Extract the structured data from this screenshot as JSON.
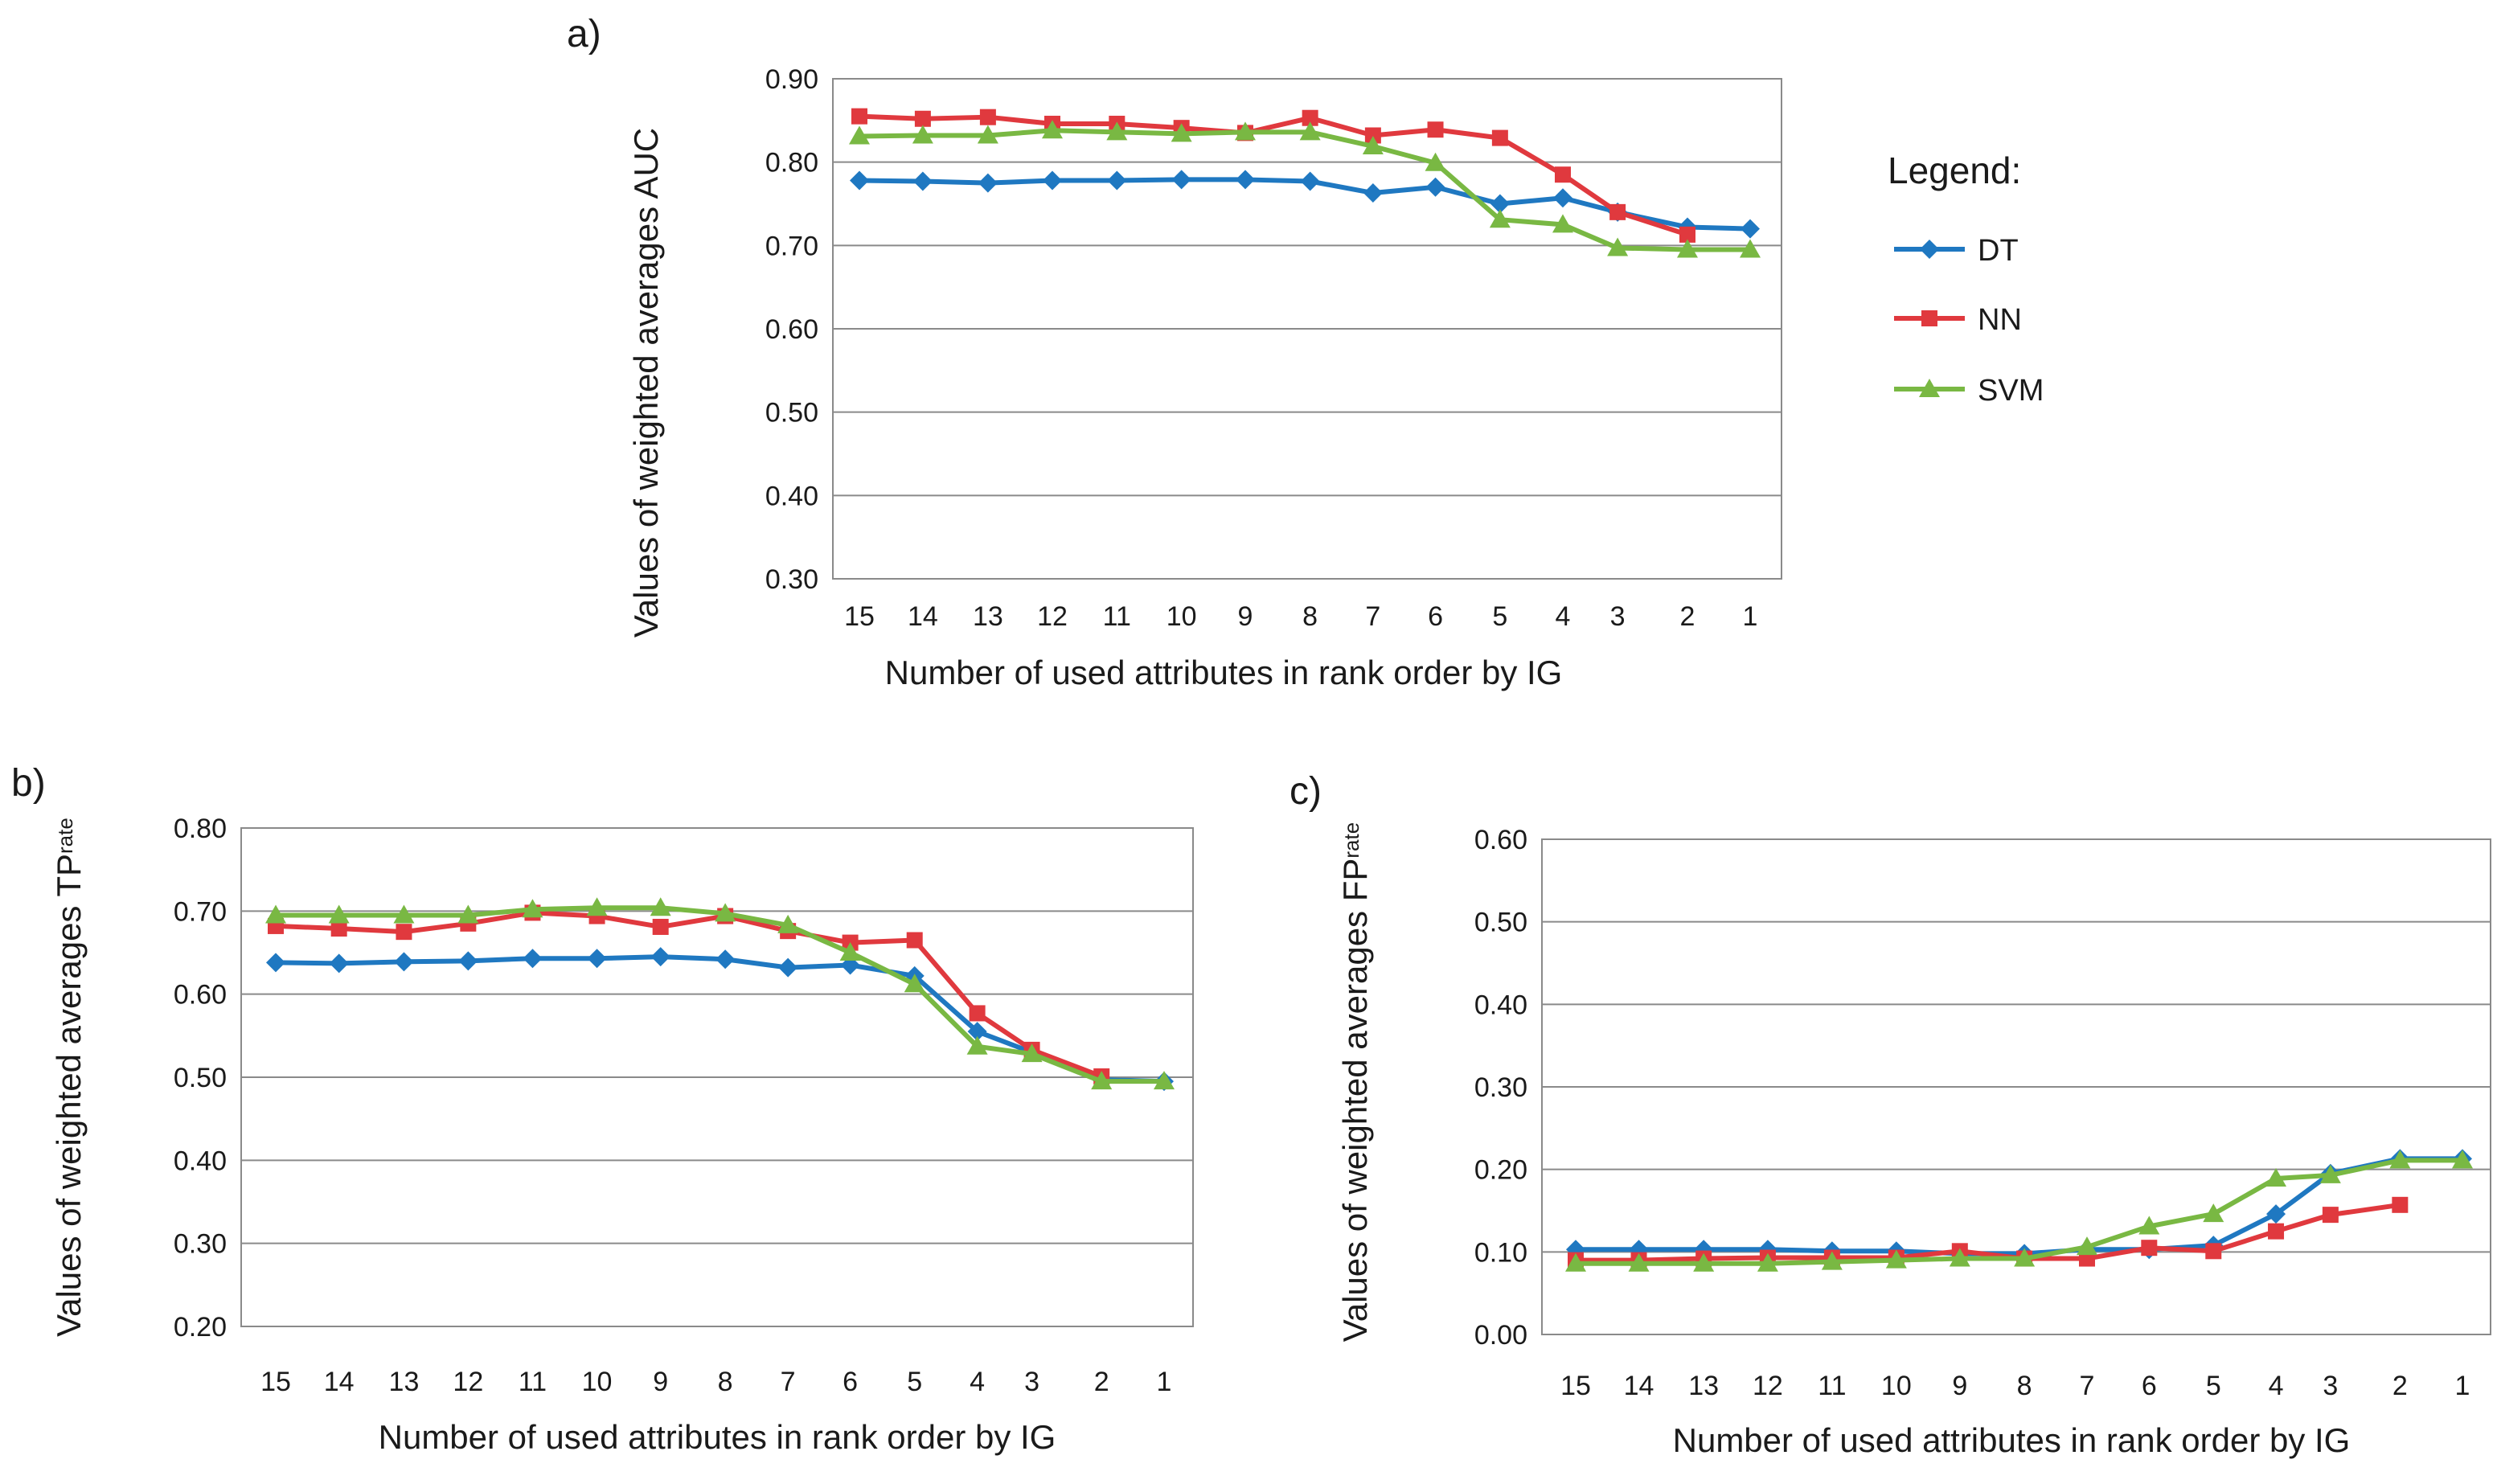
{
  "legend": {
    "title": "Legend:",
    "entries": [
      {
        "name": "DT",
        "color": "#1f78c1",
        "marker": "diamond"
      },
      {
        "name": "NN",
        "color": "#e0393e",
        "marker": "square"
      },
      {
        "name": "SVM",
        "color": "#79b843",
        "marker": "triangle"
      }
    ]
  },
  "chart_data": [
    {
      "id": "a",
      "panel_label": "a)",
      "type": "line",
      "x": [
        "15",
        "14",
        "13",
        "12",
        "11",
        "10",
        "9",
        "8",
        "7",
        "6",
        "5",
        "4",
        "3",
        "2",
        "1"
      ],
      "xlabel": "Number of used attributes in rank order by IG",
      "ylabel": "Values of weighted averages AUC",
      "ylabel_sub": "",
      "ylim": [
        0.3,
        0.9
      ],
      "yticks": [
        "0.30",
        "0.40",
        "0.50",
        "0.60",
        "0.70",
        "0.80",
        "0.90"
      ],
      "grid": true,
      "series": [
        {
          "name": "DT",
          "values": [
            0.778,
            0.777,
            0.775,
            0.778,
            0.778,
            0.779,
            0.779,
            0.777,
            0.763,
            0.77,
            0.75,
            0.757,
            0.74,
            0.722,
            0.72
          ]
        },
        {
          "name": "NN",
          "values": [
            0.855,
            0.852,
            0.854,
            0.846,
            0.846,
            0.841,
            0.835,
            0.853,
            0.832,
            0.839,
            0.829,
            0.785,
            0.74,
            0.713,
            null
          ]
        },
        {
          "name": "SVM",
          "values": [
            0.831,
            0.832,
            0.832,
            0.838,
            0.836,
            0.834,
            0.836,
            0.836,
            0.819,
            0.799,
            0.731,
            0.725,
            0.697,
            0.695,
            0.695
          ]
        }
      ]
    },
    {
      "id": "b",
      "panel_label": "b)",
      "type": "line",
      "x": [
        "15",
        "14",
        "13",
        "12",
        "11",
        "10",
        "9",
        "8",
        "7",
        "6",
        "5",
        "4",
        "3",
        "2",
        "1"
      ],
      "xlabel": "Number of used attributes in rank order by IG",
      "ylabel": "Values of weighted averages TP",
      "ylabel_sub": "rate",
      "ylim": [
        0.2,
        0.8
      ],
      "yticks": [
        "0.20",
        "0.30",
        "0.40",
        "0.50",
        "0.60",
        "0.70",
        "0.80"
      ],
      "grid": true,
      "series": [
        {
          "name": "DT",
          "values": [
            0.638,
            0.637,
            0.639,
            0.64,
            0.643,
            0.643,
            0.645,
            0.642,
            0.632,
            0.635,
            0.622,
            0.555,
            0.53,
            0.497,
            0.495
          ]
        },
        {
          "name": "NN",
          "values": [
            0.682,
            0.679,
            0.675,
            0.685,
            0.698,
            0.694,
            0.681,
            0.694,
            0.676,
            0.662,
            0.665,
            0.577,
            0.533,
            0.501,
            null
          ]
        },
        {
          "name": "SVM",
          "values": [
            0.695,
            0.695,
            0.695,
            0.695,
            0.702,
            0.704,
            0.704,
            0.697,
            0.683,
            0.65,
            0.612,
            0.537,
            0.528,
            0.495,
            0.495
          ]
        }
      ]
    },
    {
      "id": "c",
      "panel_label": "c)",
      "type": "line",
      "x": [
        "15",
        "14",
        "13",
        "12",
        "11",
        "10",
        "9",
        "8",
        "7",
        "6",
        "5",
        "4",
        "3",
        "2",
        "1"
      ],
      "xlabel": "Number of used attributes in rank order by IG",
      "ylabel": "Values of weighted averages FP",
      "ylabel_sub": "rate",
      "ylim": [
        0.0,
        0.6
      ],
      "yticks": [
        "0.00",
        "0.10",
        "0.20",
        "0.30",
        "0.40",
        "0.50",
        "0.60"
      ],
      "grid": true,
      "series": [
        {
          "name": "DT",
          "values": [
            0.103,
            0.103,
            0.103,
            0.103,
            0.101,
            0.101,
            0.098,
            0.098,
            0.103,
            0.103,
            0.108,
            0.146,
            0.195,
            0.213,
            0.213
          ]
        },
        {
          "name": "NN",
          "values": [
            0.09,
            0.09,
            0.092,
            0.093,
            0.093,
            0.093,
            0.101,
            0.092,
            0.092,
            0.105,
            0.101,
            0.125,
            0.145,
            0.157,
            null
          ]
        },
        {
          "name": "SVM",
          "values": [
            0.086,
            0.086,
            0.086,
            0.086,
            0.088,
            0.09,
            0.092,
            0.092,
            0.106,
            0.131,
            0.146,
            0.189,
            0.193,
            0.211,
            0.211
          ]
        }
      ]
    }
  ]
}
